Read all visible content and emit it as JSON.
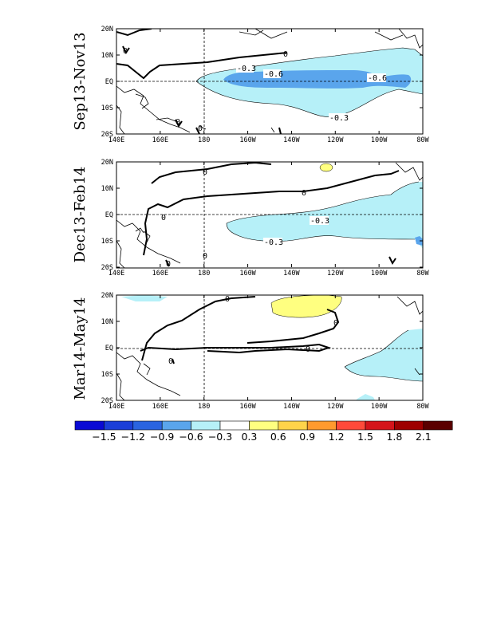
{
  "panels": [
    {
      "label": "Sep13-Nov13",
      "contour_labels": [
        "-0.3",
        "-0.6",
        "-0.6",
        "-0.3",
        "0",
        "0",
        "0",
        "0"
      ]
    },
    {
      "label": "Dec13-Feb14",
      "contour_labels": [
        "-0.3",
        "-0.3",
        "0",
        "0",
        "0",
        "0",
        "0"
      ]
    },
    {
      "label": "Mar14-May14",
      "contour_labels": [
        "0",
        "0",
        "0",
        "0"
      ]
    }
  ],
  "lon_ticks": [
    "140E",
    "160E",
    "180",
    "160W",
    "140W",
    "120W",
    "100W",
    "80W"
  ],
  "lat_ticks": [
    "20N",
    "10N",
    "EQ",
    "10S",
    "20S"
  ],
  "colorbar": {
    "colors": [
      "#0a0ad4",
      "#1b3fd8",
      "#2a64e0",
      "#5aa5ec",
      "#b6f0f8",
      "#ffffff",
      "#ffff80",
      "#ffd34a",
      "#ff9a2e",
      "#ff4a3a",
      "#d4141a",
      "#9e0000",
      "#5a0000"
    ],
    "labels": [
      "-1.5",
      "-1.2",
      "-0.9",
      "-0.6",
      "-0.3",
      "0.3",
      "0.6",
      "0.9",
      "1.2",
      "1.5",
      "1.8",
      "2.1"
    ]
  },
  "fill_colors": {
    "light_blue": "#b6f0f8",
    "mid_blue": "#5aa5ec",
    "yellow": "#ffff80"
  }
}
